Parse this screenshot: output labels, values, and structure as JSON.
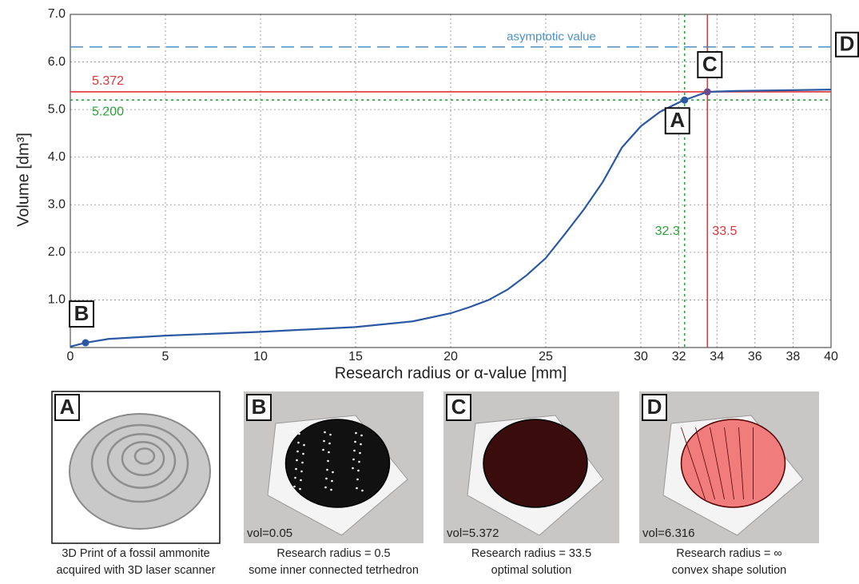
{
  "chart_data": {
    "type": "line",
    "y_label": "Volume [dm³]",
    "x_label": "Research radius or α-value [mm]",
    "xlim": [
      0,
      40
    ],
    "xticks": [
      0,
      5,
      10,
      15,
      20,
      25,
      30,
      32,
      34,
      36,
      38,
      40
    ],
    "ylim": [
      0,
      7
    ],
    "yticks": [
      {
        "value": 1,
        "label": "1.0"
      },
      {
        "value": 2,
        "label": "2.0"
      },
      {
        "value": 3,
        "label": "3.0"
      },
      {
        "value": 4,
        "label": "4.0"
      },
      {
        "value": 5,
        "label": "5.0"
      },
      {
        "value": 6,
        "label": "6.0"
      },
      {
        "value": 7,
        "label": "7.0"
      }
    ],
    "grid": true,
    "color": "#2b58a3",
    "x": [
      0,
      0.8,
      2,
      5,
      10,
      15,
      18,
      20,
      21,
      22,
      23,
      24,
      25,
      26,
      27,
      28,
      29,
      30,
      31,
      32,
      32.3,
      33,
      33.5,
      35,
      40
    ],
    "values": [
      0.02,
      0.1,
      0.18,
      0.25,
      0.33,
      0.43,
      0.55,
      0.72,
      0.85,
      1.0,
      1.22,
      1.52,
      1.88,
      2.38,
      2.9,
      3.48,
      4.2,
      4.65,
      4.95,
      5.15,
      5.2,
      5.3,
      5.372,
      5.39,
      5.42
    ],
    "hlines": [
      {
        "value": 6.316,
        "label": "asymptotic value",
        "marker": "D",
        "color": "#4a8fc6",
        "style": "dashed"
      },
      {
        "value": 5.372,
        "label": "5.372",
        "color": "#e0353a",
        "style": "solid"
      },
      {
        "value": 5.2,
        "label": "5.200",
        "color": "#2ca33a",
        "style": "dotted"
      }
    ],
    "vlines": [
      {
        "value": 32.3,
        "label": "32.3",
        "color": "#2ca33a",
        "style": "dotted"
      },
      {
        "value": 33.5,
        "label": "33.5",
        "color": "#e0353a",
        "style": "solid"
      }
    ],
    "points": [
      {
        "label": "A",
        "x": 32.3,
        "y": 5.2
      },
      {
        "label": "B",
        "x": 0.8,
        "y": 0.1
      },
      {
        "label": "C",
        "x": 33.5,
        "y": 5.372
      }
    ]
  },
  "panels": [
    {
      "letter": "A",
      "caption": [
        "3D Print of a fossil ammonite",
        "acquired with 3D laser scanner"
      ]
    },
    {
      "letter": "B",
      "vol": "vol=0.05",
      "caption": [
        "Research radius = 0.5",
        "some inner connected tetrhedron"
      ]
    },
    {
      "letter": "C",
      "vol": "vol=5.372",
      "caption": [
        "Research radius = 33.5",
        "optimal solution"
      ]
    },
    {
      "letter": "D",
      "vol": "vol=6.316",
      "caption": [
        "Research radius = ∞",
        "convex shape solution"
      ]
    }
  ]
}
